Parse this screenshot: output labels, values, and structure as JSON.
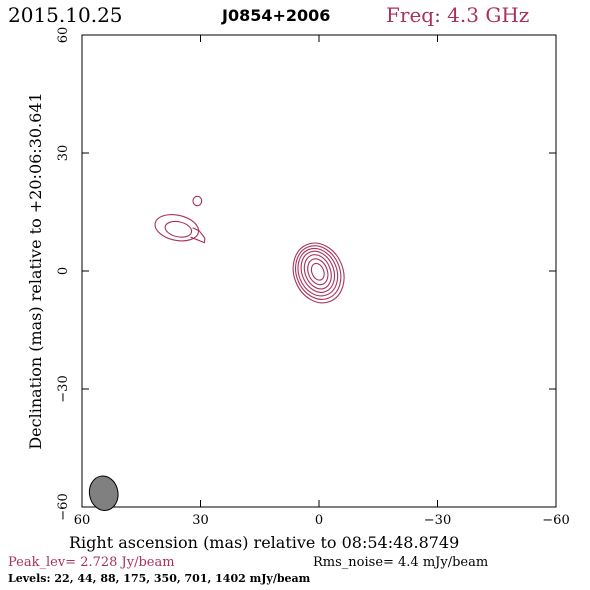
{
  "header": {
    "date": "2015.10.25",
    "source": "J0854+2006",
    "freq": "Freq: 4.3 GHz"
  },
  "chart_data": {
    "type": "contour",
    "xlabel": "Right ascension (mas) relative to 08:54:48.8749",
    "ylabel": "Declination (mas) relative to +20:06:30.641",
    "xlim": [
      60,
      -60
    ],
    "ylim": [
      -60,
      60
    ],
    "xticks": [
      60,
      30,
      0,
      -30,
      -60
    ],
    "yticks": [
      60,
      30,
      0,
      -30,
      -60
    ],
    "xtick_labels": [
      "60",
      "30",
      "0",
      "−30",
      "−60"
    ],
    "ytick_labels": [
      "60",
      "30",
      "0",
      "−30",
      "−60"
    ],
    "contour_levels_mJy_per_beam": [
      22,
      44,
      88,
      175,
      350,
      701,
      1402
    ],
    "components": [
      {
        "name": "core",
        "center": [
          0.3,
          -0.2
        ],
        "contours": [
          {
            "rx": 6.2,
            "ry": 7.8,
            "angle": -22,
            "dx": -0.2,
            "dy": -0.3
          },
          {
            "rx": 5.5,
            "ry": 7.0,
            "angle": -22,
            "dx": -0.1,
            "dy": -0.2
          },
          {
            "rx": 4.8,
            "ry": 6.2,
            "angle": -22,
            "dx": 0.0,
            "dy": -0.1
          },
          {
            "rx": 4.0,
            "ry": 5.4,
            "angle": -22,
            "dx": 0.0,
            "dy": 0.0
          },
          {
            "rx": 3.2,
            "ry": 4.5,
            "angle": -22,
            "dx": 0.0,
            "dy": 0.0
          },
          {
            "rx": 2.4,
            "ry": 3.4,
            "angle": -22,
            "dx": 0.0,
            "dy": 0.0
          },
          {
            "rx": 1.5,
            "ry": 2.2,
            "angle": -22,
            "dx": 0.0,
            "dy": 0.0
          }
        ]
      },
      {
        "name": "jet-knot",
        "center": [
          36.0,
          11.0
        ],
        "contours": [
          {
            "rx": 5.6,
            "ry": 3.2,
            "angle": 12,
            "dx": 0.0,
            "dy": 0.0
          },
          {
            "rx": 3.4,
            "ry": 1.9,
            "angle": 12,
            "dx": -0.4,
            "dy": -0.4
          }
        ]
      },
      {
        "name": "jet-tail",
        "points": [
          [
            32.5,
            8.6
          ],
          [
            30.2,
            7.7
          ],
          [
            29.0,
            7.2
          ],
          [
            28.9,
            8.4
          ],
          [
            30.3,
            10.2
          ],
          [
            32.0,
            11.0
          ]
        ]
      },
      {
        "name": "compact-blob",
        "center": [
          30.8,
          17.8
        ],
        "contours": [
          {
            "rx": 1.1,
            "ry": 1.2,
            "angle": 0,
            "dx": 0.0,
            "dy": 0.0
          }
        ]
      }
    ],
    "beam": {
      "center": [
        54.5,
        -56.5
      ],
      "major": 4.4,
      "minor": 3.6,
      "angle": -10
    },
    "colors": {
      "contour": "#a8325a",
      "beam": "#808080",
      "frame": "#000000"
    }
  },
  "footer": {
    "peak_lev": "Peak_lev=  2.728 Jy/beam",
    "rms_noise": "Rms_noise=  4.4 mJy/beam",
    "levels": "Levels:  22,  44,  88, 175, 350, 701, 1402 mJy/beam"
  }
}
